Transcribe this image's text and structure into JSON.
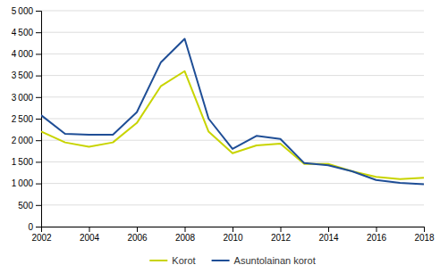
{
  "chart_data": {
    "type": "line",
    "x": [
      2002,
      2003,
      2004,
      2005,
      2006,
      2007,
      2008,
      2009,
      2010,
      2011,
      2012,
      2013,
      2014,
      2015,
      2016,
      2017,
      2018
    ],
    "series": [
      {
        "name": "Korot",
        "color": "#c8d400",
        "values": [
          2200,
          1950,
          1850,
          1950,
          2400,
          3250,
          3600,
          2200,
          1700,
          1880,
          1920,
          1450,
          1450,
          1280,
          1150,
          1100,
          1130
        ]
      },
      {
        "name": "Asuntolainan korot",
        "color": "#1f4e96",
        "values": [
          2580,
          2150,
          2130,
          2130,
          2650,
          3800,
          4350,
          2500,
          1800,
          2100,
          2030,
          1470,
          1420,
          1280,
          1080,
          1010,
          980
        ]
      }
    ],
    "xlim": [
      2002,
      2018
    ],
    "xticks": [
      2002,
      2004,
      2006,
      2008,
      2010,
      2012,
      2014,
      2016,
      2018
    ],
    "ylim": [
      0,
      5000
    ],
    "yticks": [
      0,
      500,
      {
        "value": 1000,
        "label": "1 000"
      },
      {
        "value": 1500,
        "label": "1 500"
      },
      {
        "value": 2000,
        "label": "2 000"
      },
      {
        "value": 2500,
        "label": "2 500"
      },
      {
        "value": 3000,
        "label": "3 000"
      },
      {
        "value": 3500,
        "label": "3 500"
      },
      {
        "value": 4000,
        "label": "4 000"
      },
      {
        "value": 4500,
        "label": "4 500"
      },
      {
        "value": 5000,
        "label": "5 000"
      }
    ],
    "grid": true,
    "legend": "bottom"
  }
}
